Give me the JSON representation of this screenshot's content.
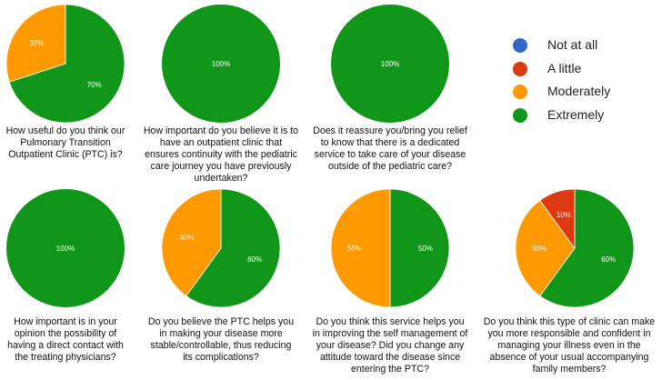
{
  "legend": [
    {
      "label": "Not at all",
      "color": "#3366cc"
    },
    {
      "label": "A little",
      "color": "#dc3912"
    },
    {
      "label": "Moderately",
      "color": "#ff9900"
    },
    {
      "label": "Extremely",
      "color": "#109618"
    }
  ],
  "chart_data": [
    {
      "type": "pie",
      "question": "How useful do you think our Pulmonary Transition Outpatient Clinic (PTC) is?",
      "slices": [
        {
          "category": "Extremely",
          "value": 70,
          "label": "70%"
        },
        {
          "category": "Moderately",
          "value": 30,
          "label": "30%"
        }
      ]
    },
    {
      "type": "pie",
      "question": "How important do you believe it is to have an outpatient clinic that ensures continuity with the pediatric care journey you have previously undertaken?",
      "slices": [
        {
          "category": "Extremely",
          "value": 100,
          "label": "100%"
        }
      ]
    },
    {
      "type": "pie",
      "question": "Does it reassure you/bring you relief to know that there is a dedicated service to take care of your disease outside of the pediatric care?",
      "slices": [
        {
          "category": "Extremely",
          "value": 100,
          "label": "100%"
        }
      ]
    },
    {
      "type": "pie",
      "question": "How important is in your opinion the possibility of having a direct contact with the treating physicians?",
      "slices": [
        {
          "category": "Extremely",
          "value": 100,
          "label": "100%"
        }
      ]
    },
    {
      "type": "pie",
      "question": "Do you believe the PTC helps you in making your disease more stable/controllable, thus reducing its complications?",
      "slices": [
        {
          "category": "Extremely",
          "value": 60,
          "label": "60%"
        },
        {
          "category": "Moderately",
          "value": 40,
          "label": "40%"
        }
      ]
    },
    {
      "type": "pie",
      "question": "Do you think this service helps you in improving the self management of your disease? Did you change any attitude toward the disease since entering the PTC?",
      "slices": [
        {
          "category": "Extremely",
          "value": 50,
          "label": "50%"
        },
        {
          "category": "Moderately",
          "value": 50,
          "label": "50%"
        }
      ]
    },
    {
      "type": "pie",
      "question": "Do you think this type of clinic can make you more responsible and confident in managing your illness even in the absence of your usual accompanying family members?",
      "slices": [
        {
          "category": "Extremely",
          "value": 60,
          "label": "60%"
        },
        {
          "category": "Moderately",
          "value": 30,
          "label": "30%"
        },
        {
          "category": "A little",
          "value": 10,
          "label": "10%"
        }
      ]
    }
  ]
}
